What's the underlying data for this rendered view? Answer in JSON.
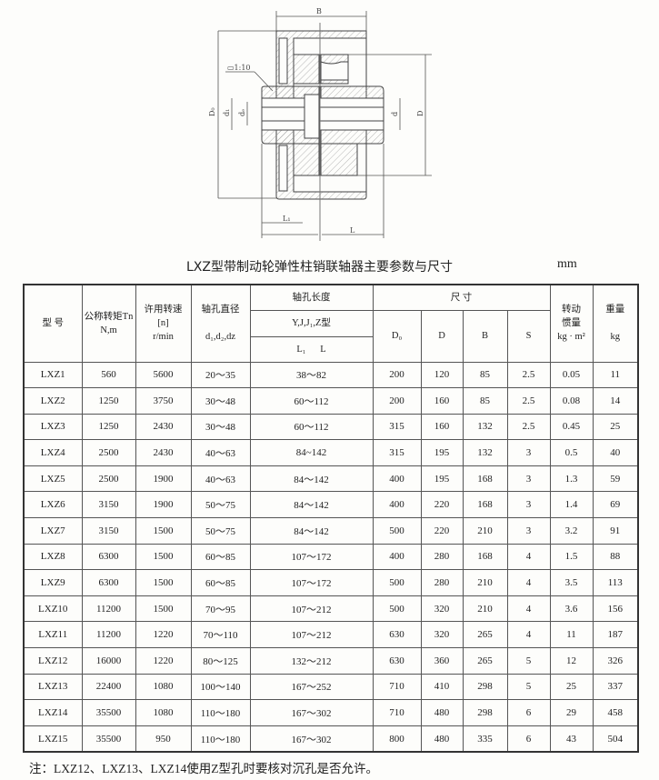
{
  "drawing": {
    "labels": {
      "B": "B",
      "taper": "▭1:10",
      "D0": "D₀",
      "d1": "d₁",
      "dz": "dₑ",
      "d": "d",
      "D": "D",
      "L1": "L₁",
      "L": "L"
    }
  },
  "title": "LXZ型带制动轮弹性柱销联轴器主要参数与尺寸",
  "unit": "mm",
  "table": {
    "headers": {
      "model": "型 号",
      "torque": [
        "公称转矩Tn",
        "N,m"
      ],
      "speed": [
        "许用转速",
        "[n]",
        "r/min"
      ],
      "bore_dia": [
        "轴孔直径",
        "d₁,d₂,dz"
      ],
      "bore_len": "轴孔长度",
      "bore_type": "Y,J,J₁,Z型",
      "bore_len_sub": "L₁      L",
      "dims": "尺     寸",
      "D0": "D₀",
      "D": "D",
      "B": "B",
      "S": "S",
      "inertia": [
        "转动",
        "惯量",
        "kg · m²"
      ],
      "weight": [
        "重量",
        "kg"
      ]
    },
    "rows": [
      [
        "LXZ1",
        "560",
        "5600",
        "20～35",
        "38～82",
        "200",
        "120",
        "85",
        "2.5",
        "0.05",
        "11"
      ],
      [
        "LXZ2",
        "1250",
        "3750",
        "30～48",
        "60～112",
        "200",
        "160",
        "85",
        "2.5",
        "0.08",
        "14"
      ],
      [
        "LXZ3",
        "1250",
        "2430",
        "30～48",
        "60～112",
        "315",
        "160",
        "132",
        "2.5",
        "0.45",
        "25"
      ],
      [
        "LXZ4",
        "2500",
        "2430",
        "40～63",
        "84~142",
        "315",
        "195",
        "132",
        "3",
        "0.5",
        "40"
      ],
      [
        "LXZ5",
        "2500",
        "1900",
        "40～63",
        "84～142",
        "400",
        "195",
        "168",
        "3",
        "1.3",
        "59"
      ],
      [
        "LXZ6",
        "3150",
        "1900",
        "50～75",
        "84～142",
        "400",
        "220",
        "168",
        "3",
        "1.4",
        "69"
      ],
      [
        "LXZ7",
        "3150",
        "1500",
        "50～75",
        "84～142",
        "500",
        "220",
        "210",
        "3",
        "3.2",
        "91"
      ],
      [
        "LXZ8",
        "6300",
        "1500",
        "60～85",
        "107～172",
        "400",
        "280",
        "168",
        "4",
        "1.5",
        "88"
      ],
      [
        "LXZ9",
        "6300",
        "1500",
        "60～85",
        "107～172",
        "500",
        "280",
        "210",
        "4",
        "3.5",
        "113"
      ],
      [
        "LXZ10",
        "11200",
        "1500",
        "70～95",
        "107～212",
        "500",
        "320",
        "210",
        "4",
        "3.6",
        "156"
      ],
      [
        "LXZ11",
        "11200",
        "1220",
        "70～110",
        "107～212",
        "630",
        "320",
        "265",
        "4",
        "11",
        "187"
      ],
      [
        "LXZ12",
        "16000",
        "1220",
        "80～125",
        "132～212",
        "630",
        "360",
        "265",
        "5",
        "12",
        "326"
      ],
      [
        "LXZ13",
        "22400",
        "1080",
        "100～140",
        "167～252",
        "710",
        "410",
        "298",
        "5",
        "25",
        "337"
      ],
      [
        "LXZ14",
        "35500",
        "1080",
        "110～180",
        "167～302",
        "710",
        "480",
        "298",
        "6",
        "29",
        "458"
      ],
      [
        "LXZ15",
        "35500",
        "950",
        "110～180",
        "167～302",
        "800",
        "480",
        "335",
        "6",
        "43",
        "504"
      ]
    ]
  },
  "note": "注：LXZ12、LXZ13、LXZ14使用Z型孔时要核对沉孔是否允许。"
}
